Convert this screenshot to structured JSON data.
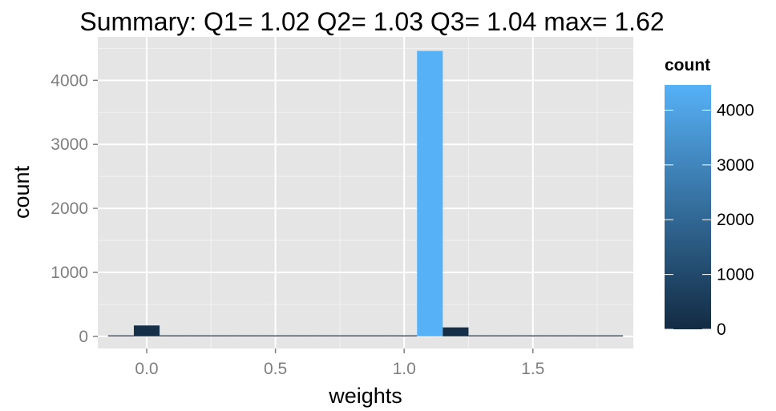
{
  "chart_data": {
    "type": "bar",
    "title": "Summary: Q1= 1.02  Q2= 1.03  Q3= 1.04  max= 1.62",
    "xlabel": "weights",
    "ylabel": "count",
    "bin_width": 0.1,
    "bins": [
      {
        "x": -0.1,
        "value": 0
      },
      {
        "x": 0.0,
        "value": 170
      },
      {
        "x": 0.1,
        "value": 0
      },
      {
        "x": 0.2,
        "value": 0
      },
      {
        "x": 0.3,
        "value": 0
      },
      {
        "x": 0.4,
        "value": 0
      },
      {
        "x": 0.5,
        "value": 0
      },
      {
        "x": 0.6,
        "value": 0
      },
      {
        "x": 0.7,
        "value": 0
      },
      {
        "x": 0.8,
        "value": 0
      },
      {
        "x": 0.9,
        "value": 0
      },
      {
        "x": 1.0,
        "value": 0
      },
      {
        "x": 1.1,
        "value": 4460
      },
      {
        "x": 1.2,
        "value": 140
      },
      {
        "x": 1.3,
        "value": 15
      },
      {
        "x": 1.4,
        "value": 2
      },
      {
        "x": 1.5,
        "value": 1
      },
      {
        "x": 1.6,
        "value": 1
      },
      {
        "x": 1.7,
        "value": 0
      },
      {
        "x": 1.8,
        "value": 0
      }
    ],
    "xlim": [
      -0.19,
      1.89
    ],
    "ylim": [
      -190,
      4680
    ],
    "x_ticks": [
      {
        "value": 0.0,
        "label": "0.0"
      },
      {
        "value": 0.5,
        "label": "0.5"
      },
      {
        "value": 1.0,
        "label": "1.0"
      },
      {
        "value": 1.5,
        "label": "1.5"
      }
    ],
    "y_ticks": [
      {
        "value": 0,
        "label": "0"
      },
      {
        "value": 1000,
        "label": "1000"
      },
      {
        "value": 2000,
        "label": "2000"
      },
      {
        "value": 3000,
        "label": "3000"
      },
      {
        "value": 4000,
        "label": "4000"
      }
    ],
    "grid": true,
    "legend": {
      "title": "count",
      "position": "right",
      "range": [
        0,
        4460
      ],
      "color_low": "#132B43",
      "color_high": "#56B1F7",
      "breaks": [
        {
          "value": 0,
          "label": "0"
        },
        {
          "value": 1000,
          "label": "1000"
        },
        {
          "value": 2000,
          "label": "2000"
        },
        {
          "value": 3000,
          "label": "3000"
        },
        {
          "value": 4000,
          "label": "4000"
        }
      ]
    },
    "colors": {
      "panel_background": "#E5E5E5",
      "grid_major": "#FFFFFF",
      "grid_minor": "#F2F2F2",
      "tick_label": "#7F7F7F"
    }
  }
}
